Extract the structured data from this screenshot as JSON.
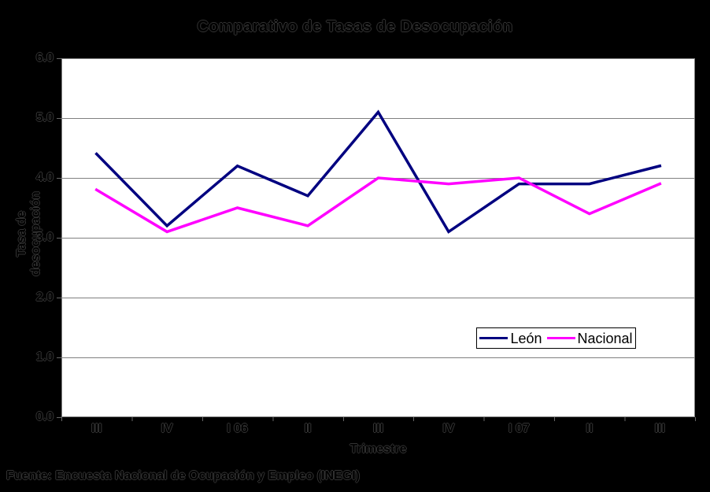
{
  "title": "Comparativo de Tasas de Desocupación",
  "footer": "Fuente: Encuesta Nacional de Ocupación y Empleo (INEGI)",
  "legend": {
    "items": [
      {
        "label": "León",
        "color": "#000080"
      },
      {
        "label": "Nacional",
        "color": "#FF00FF"
      }
    ]
  },
  "chart_data": {
    "type": "line",
    "title": "Comparativo de Tasas de Desocupación",
    "xlabel": "Trimestre",
    "ylabel": "Tasa de desocupación",
    "categories": [
      "III",
      "IV",
      "I 06",
      "II",
      "III",
      "IV",
      "I 07",
      "II",
      "III"
    ],
    "series": [
      {
        "name": "León",
        "color": "#000080",
        "values": [
          4.4,
          3.2,
          4.2,
          3.7,
          5.1,
          3.1,
          3.9,
          3.9,
          4.2
        ]
      },
      {
        "name": "Nacional",
        "color": "#FF00FF",
        "values": [
          3.8,
          3.1,
          3.5,
          3.2,
          4.0,
          3.9,
          4.0,
          3.4,
          3.9
        ]
      }
    ],
    "ylim": [
      0,
      6
    ],
    "ytick_step": 1,
    "y_tick_labels": [
      "0.0",
      "1.0",
      "2.0",
      "3.0",
      "4.0",
      "5.0",
      "6.0"
    ],
    "grid": "horizontal",
    "legend_position": "inside-right",
    "colors": {
      "background": "#000000",
      "plot_background": "#FFFFFF",
      "gridline": "#808080",
      "tick": "#666666"
    }
  }
}
